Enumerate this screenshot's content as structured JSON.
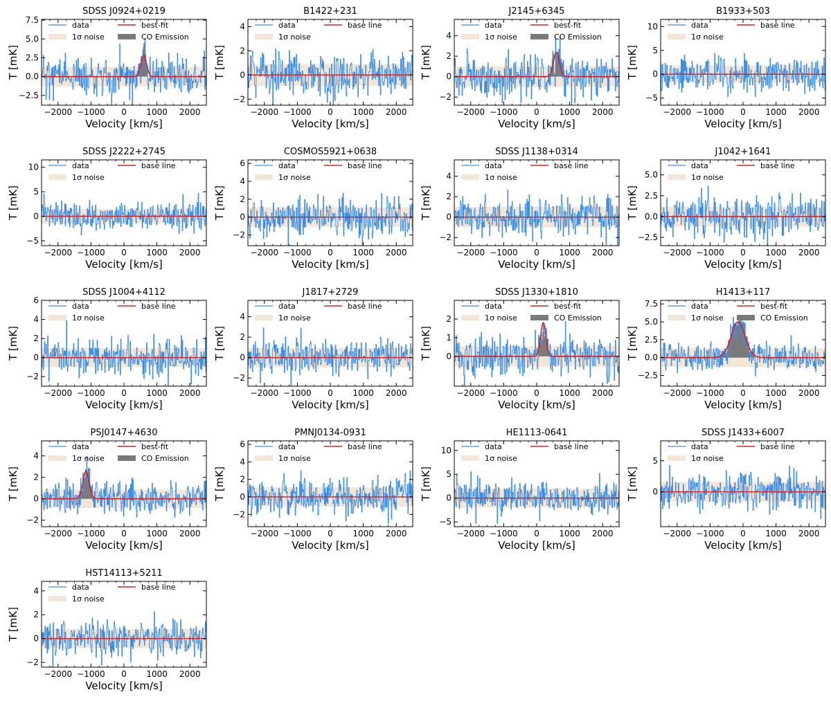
{
  "figure": {
    "xlabel": "Velocity [km/s]",
    "ylabel": "T [mK]",
    "legend": {
      "data": "data",
      "noise": "1σ noise",
      "fit": "best-fit",
      "base": "base line",
      "emission": "CO Emission"
    },
    "colors": {
      "data": "#3d8fe6",
      "noise": "#f3e6d6",
      "fit": "#d62020",
      "emission": "#7a7a7a",
      "axis": "#000000"
    }
  },
  "chart_data": [
    {
      "type": "line",
      "title": "SDSS J0924+0219",
      "xlim": [
        -2500,
        2500
      ],
      "xticks": [
        -2000,
        -1000,
        0,
        1000,
        2000
      ],
      "ylim": [
        -3.8,
        7.6
      ],
      "yticks": [
        -2.5,
        0.0,
        2.5,
        5.0,
        7.5
      ],
      "ytick_labels": [
        "−2.5",
        "0.0",
        "2.5",
        "5.0",
        "7.5"
      ],
      "noise_sigma": 1.3,
      "detection": true,
      "fit": {
        "peak": 2.8,
        "center": 600,
        "sigma": 85
      },
      "data_amplitude": 1.3,
      "seed": 11
    },
    {
      "type": "line",
      "title": "B1422+231",
      "xlim": [
        -2500,
        2500
      ],
      "xticks": [
        -2000,
        -1000,
        0,
        1000,
        2000
      ],
      "ylim": [
        -2.5,
        4.6
      ],
      "yticks": [
        -2,
        0,
        2,
        4
      ],
      "ytick_labels": [
        "−2",
        "0",
        "2",
        "4"
      ],
      "noise_sigma": 0.9,
      "detection": false,
      "data_amplitude": 0.9,
      "seed": 12
    },
    {
      "type": "line",
      "title": "J2145+6345",
      "xlim": [
        -2500,
        2500
      ],
      "xticks": [
        -2000,
        -1000,
        0,
        1000,
        2000
      ],
      "ylim": [
        -2.8,
        5.6
      ],
      "yticks": [
        -2,
        0,
        2,
        4
      ],
      "ytick_labels": [
        "−2",
        "0",
        "2",
        "4"
      ],
      "noise_sigma": 1.0,
      "detection": true,
      "fit": {
        "peak": 2.4,
        "center": 600,
        "sigma": 90
      },
      "data_amplitude": 1.0,
      "seed": 13
    },
    {
      "type": "line",
      "title": "B1933+503",
      "xlim": [
        -2500,
        2500
      ],
      "xticks": [
        -2000,
        -1000,
        0,
        1000,
        2000
      ],
      "ylim": [
        -6.5,
        11.5
      ],
      "yticks": [
        -5,
        0,
        5,
        10
      ],
      "ytick_labels": [
        "−5",
        "0",
        "5",
        "10"
      ],
      "noise_sigma": 1.8,
      "detection": false,
      "data_amplitude": 1.8,
      "seed": 14
    },
    {
      "type": "line",
      "title": "SDSS J2222+2745",
      "xlim": [
        -2500,
        2500
      ],
      "xticks": [
        -2000,
        -1000,
        0,
        1000,
        2000
      ],
      "ylim": [
        -6.0,
        11.5
      ],
      "yticks": [
        -5,
        0,
        5,
        10
      ],
      "ytick_labels": [
        "−5",
        "0",
        "5",
        "10"
      ],
      "noise_sigma": 1.5,
      "detection": false,
      "data_amplitude": 1.5,
      "seed": 15
    },
    {
      "type": "line",
      "title": "COSMOS5921+0638",
      "xlim": [
        -2500,
        2500
      ],
      "xticks": [
        -2000,
        -1000,
        0,
        1000,
        2000
      ],
      "ylim": [
        -3.2,
        6.4
      ],
      "yticks": [
        -2,
        0,
        2,
        4,
        6
      ],
      "ytick_labels": [
        "−2",
        "0",
        "2",
        "4",
        "6"
      ],
      "noise_sigma": 1.1,
      "detection": false,
      "data_amplitude": 1.1,
      "seed": 16
    },
    {
      "type": "line",
      "title": "SDSS J1138+0314",
      "xlim": [
        -2500,
        2500
      ],
      "xticks": [
        -2000,
        -1000,
        0,
        1000,
        2000
      ],
      "ylim": [
        -2.8,
        5.6
      ],
      "yticks": [
        -2,
        0,
        2,
        4
      ],
      "ytick_labels": [
        "−2",
        "0",
        "2",
        "4"
      ],
      "noise_sigma": 1.0,
      "detection": false,
      "data_amplitude": 1.0,
      "seed": 17
    },
    {
      "type": "line",
      "title": "J1042+1641",
      "xlim": [
        -2500,
        2500
      ],
      "xticks": [
        -2000,
        -1000,
        0,
        1000,
        2000
      ],
      "ylim": [
        -3.5,
        6.8
      ],
      "yticks": [
        -2.5,
        0.0,
        2.5,
        5.0
      ],
      "ytick_labels": [
        "−2.5",
        "0.0",
        "2.5",
        "5.0"
      ],
      "noise_sigma": 1.2,
      "detection": false,
      "data_amplitude": 1.2,
      "seed": 18
    },
    {
      "type": "line",
      "title": "SDSS J1004+4112",
      "xlim": [
        -2500,
        2500
      ],
      "xticks": [
        -2000,
        -1000,
        0,
        1000,
        2000
      ],
      "ylim": [
        -3.0,
        6.0
      ],
      "yticks": [
        -2,
        0,
        2,
        4,
        6
      ],
      "ytick_labels": [
        "−2",
        "0",
        "2",
        "4",
        "6"
      ],
      "noise_sigma": 1.0,
      "detection": false,
      "data_amplitude": 1.0,
      "seed": 19
    },
    {
      "type": "line",
      "title": "J1817+2729",
      "xlim": [
        -2500,
        2500
      ],
      "xticks": [
        -2000,
        -1000,
        0,
        1000,
        2000
      ],
      "ylim": [
        -2.8,
        5.6
      ],
      "yticks": [
        -2,
        0,
        2,
        4
      ],
      "ytick_labels": [
        "−2",
        "0",
        "2",
        "4"
      ],
      "noise_sigma": 0.95,
      "detection": false,
      "data_amplitude": 0.95,
      "seed": 20
    },
    {
      "type": "line",
      "title": "SDSS J1330+1810",
      "xlim": [
        -2500,
        2500
      ],
      "xticks": [
        -2000,
        -1000,
        0,
        1000,
        2000
      ],
      "ylim": [
        -1.6,
        3.0
      ],
      "yticks": [
        0,
        1,
        2
      ],
      "ytick_labels": [
        "0",
        "1",
        "2"
      ],
      "noise_sigma": 0.55,
      "detection": true,
      "fit": {
        "peak": 1.8,
        "center": 200,
        "sigma": 80
      },
      "data_amplitude": 0.55,
      "seed": 21
    },
    {
      "type": "line",
      "title": "H1413+117",
      "xlim": [
        -2500,
        2500
      ],
      "xticks": [
        -2000,
        -1000,
        0,
        1000,
        2000
      ],
      "ylim": [
        -4.0,
        8.0
      ],
      "yticks": [
        -2.5,
        0.0,
        2.5,
        5.0,
        7.5
      ],
      "ytick_labels": [
        "−2.5",
        "0.0",
        "2.5",
        "5.0",
        "7.5"
      ],
      "noise_sigma": 1.3,
      "detection": true,
      "fit": {
        "peak": 5.0,
        "center": -150,
        "sigma": 210
      },
      "data_amplitude": 1.0,
      "seed": 22
    },
    {
      "type": "line",
      "title": "PSJ0147+4630",
      "xlim": [
        -2500,
        2500
      ],
      "xticks": [
        -2000,
        -1000,
        0,
        1000,
        2000
      ],
      "ylim": [
        -2.6,
        5.4
      ],
      "yticks": [
        -2,
        0,
        2,
        4
      ],
      "ytick_labels": [
        "−2",
        "0",
        "2",
        "4"
      ],
      "noise_sigma": 0.85,
      "detection": true,
      "fit": {
        "peak": 2.6,
        "center": -1150,
        "sigma": 95
      },
      "data_amplitude": 0.8,
      "seed": 23
    },
    {
      "type": "line",
      "title": "PMNJ0134-0931",
      "xlim": [
        -2500,
        2500
      ],
      "xticks": [
        -2000,
        -1000,
        0,
        1000,
        2000
      ],
      "ylim": [
        -3.4,
        6.4
      ],
      "yticks": [
        -2,
        0,
        2,
        4,
        6
      ],
      "ytick_labels": [
        "−2",
        "0",
        "2",
        "4",
        "6"
      ],
      "noise_sigma": 1.1,
      "detection": false,
      "data_amplitude": 1.1,
      "seed": 24
    },
    {
      "type": "line",
      "title": "HE1113-0641",
      "xlim": [
        -2500,
        2500
      ],
      "xticks": [
        -2000,
        -1000,
        0,
        1000,
        2000
      ],
      "ylim": [
        -6.0,
        12.0
      ],
      "yticks": [
        -5,
        0,
        5,
        10
      ],
      "ytick_labels": [
        "−5",
        "0",
        "5",
        "10"
      ],
      "noise_sigma": 2.0,
      "detection": false,
      "data_amplitude": 1.8,
      "seed": 25
    },
    {
      "type": "line",
      "title": "SDSS J1433+6007",
      "xlim": [
        -2500,
        2500
      ],
      "xticks": [
        -2000,
        -1000,
        0,
        1000,
        2000
      ],
      "ylim": [
        -5.6,
        8.2
      ],
      "yticks": [
        0,
        5
      ],
      "ytick_labels": [
        "0",
        "5"
      ],
      "noise_sigma": 1.6,
      "detection": false,
      "data_amplitude": 1.5,
      "seed": 26
    },
    {
      "type": "line",
      "title": "HST14113+5211",
      "xlim": [
        -2500,
        2500
      ],
      "xticks": [
        -2000,
        -1000,
        0,
        1000,
        2000
      ],
      "ylim": [
        -2.4,
        4.8
      ],
      "yticks": [
        -2,
        0,
        2,
        4
      ],
      "ytick_labels": [
        "−2",
        "0",
        "2",
        "4"
      ],
      "noise_sigma": 0.8,
      "detection": false,
      "data_amplitude": 0.8,
      "seed": 27
    }
  ]
}
